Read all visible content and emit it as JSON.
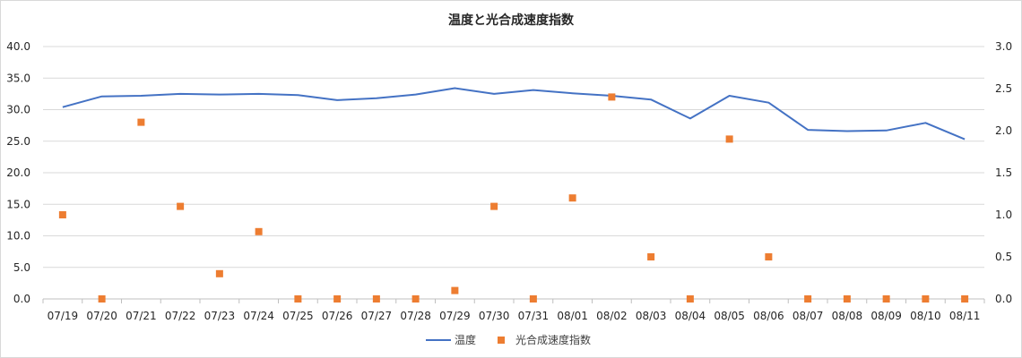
{
  "chart_data": {
    "type": "line",
    "title": "温度と光合成速度指数",
    "categories": [
      "07/19",
      "07/20",
      "07/21",
      "07/22",
      "07/23",
      "07/24",
      "07/25",
      "07/26",
      "07/27",
      "07/28",
      "07/29",
      "07/30",
      "07/31",
      "08/01",
      "08/02",
      "08/03",
      "08/04",
      "08/05",
      "08/06",
      "08/07",
      "08/08",
      "08/09",
      "08/10",
      "08/11"
    ],
    "y_left": {
      "min": 0,
      "max": 40,
      "step": 5,
      "tick_labels": [
        "0.0",
        "5.0",
        "10.0",
        "15.0",
        "20.0",
        "25.0",
        "30.0",
        "35.0",
        "40.0"
      ]
    },
    "y_right": {
      "min": 0,
      "max": 3,
      "step": 0.5,
      "tick_labels": [
        "0.0",
        "0.5",
        "1.0",
        "1.5",
        "2.0",
        "2.5",
        "3.0"
      ]
    },
    "grid": true,
    "legend_position": "bottom",
    "series": [
      {
        "name": "温度",
        "kind": "line",
        "axis": "left",
        "color": "#4472C4",
        "values": [
          30.4,
          32.1,
          32.2,
          32.5,
          32.4,
          32.5,
          32.3,
          31.5,
          31.8,
          32.4,
          33.4,
          32.5,
          33.1,
          32.6,
          32.2,
          31.6,
          28.6,
          32.2,
          31.1,
          26.8,
          26.6,
          26.7,
          27.9,
          25.3
        ]
      },
      {
        "name": "光合成速度指数",
        "kind": "scatter",
        "axis": "right",
        "color": "#ED7D31",
        "values": [
          1.0,
          0.0,
          2.1,
          1.1,
          0.3,
          0.8,
          0.0,
          0.0,
          0.0,
          0.0,
          0.1,
          1.1,
          0.0,
          1.2,
          2.4,
          0.5,
          0.0,
          1.9,
          0.5,
          0.0,
          0.0,
          0.0,
          0.0,
          0.0
        ]
      }
    ]
  }
}
